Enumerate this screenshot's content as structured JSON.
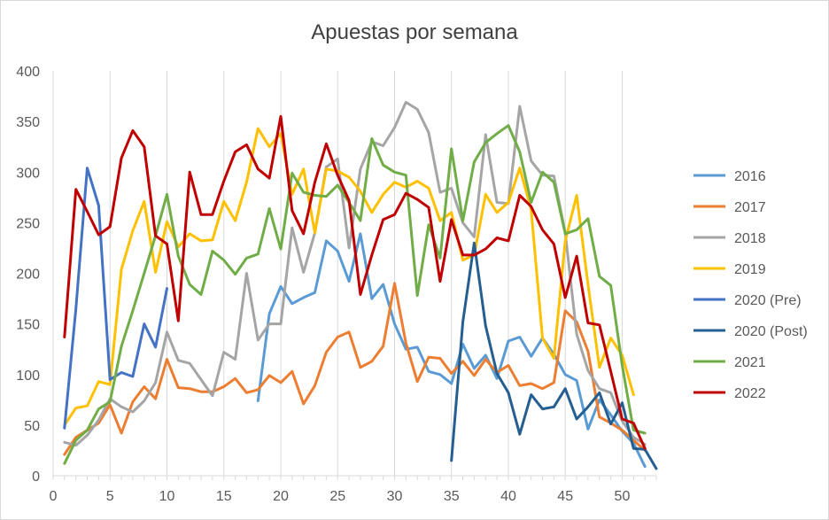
{
  "chart_data": {
    "type": "line",
    "title": "Apuestas por semana",
    "xlim": [
      0,
      53
    ],
    "ylim": [
      0,
      400
    ],
    "x_ticks": [
      0,
      5,
      10,
      15,
      20,
      25,
      30,
      35,
      40,
      45,
      50
    ],
    "y_ticks": [
      0,
      50,
      100,
      150,
      200,
      250,
      300,
      350,
      400
    ],
    "grid": "vertical",
    "legend_position": "right",
    "series": [
      {
        "name": "2016",
        "color": "#5b9bd5",
        "points": [
          [
            18,
            74
          ],
          [
            19,
            160
          ],
          [
            20,
            187
          ],
          [
            21,
            170
          ],
          [
            22,
            176
          ],
          [
            23,
            181
          ],
          [
            24,
            232
          ],
          [
            25,
            222
          ],
          [
            26,
            192
          ],
          [
            27,
            239
          ],
          [
            28,
            175
          ],
          [
            29,
            189
          ],
          [
            30,
            150
          ],
          [
            31,
            125
          ],
          [
            32,
            127
          ],
          [
            33,
            103
          ],
          [
            34,
            100
          ],
          [
            35,
            91
          ],
          [
            36,
            130
          ],
          [
            37,
            106
          ],
          [
            38,
            119
          ],
          [
            39,
            96
          ],
          [
            40,
            133
          ],
          [
            41,
            137
          ],
          [
            42,
            118
          ],
          [
            43,
            136
          ],
          [
            44,
            120
          ],
          [
            45,
            100
          ],
          [
            46,
            94
          ],
          [
            47,
            46
          ],
          [
            48,
            75
          ],
          [
            49,
            60
          ],
          [
            50,
            44
          ],
          [
            51,
            32
          ],
          [
            52,
            9
          ]
        ]
      },
      {
        "name": "2017",
        "color": "#ed7d31",
        "points": [
          [
            1,
            21
          ],
          [
            2,
            38
          ],
          [
            3,
            45
          ],
          [
            4,
            52
          ],
          [
            5,
            70
          ],
          [
            6,
            42
          ],
          [
            7,
            73
          ],
          [
            8,
            88
          ],
          [
            9,
            76
          ],
          [
            10,
            115
          ],
          [
            11,
            87
          ],
          [
            12,
            86
          ],
          [
            13,
            83
          ],
          [
            14,
            83
          ],
          [
            15,
            88
          ],
          [
            16,
            96
          ],
          [
            17,
            82
          ],
          [
            18,
            85
          ],
          [
            19,
            99
          ],
          [
            20,
            92
          ],
          [
            21,
            103
          ],
          [
            22,
            71
          ],
          [
            23,
            89
          ],
          [
            24,
            122
          ],
          [
            25,
            137
          ],
          [
            26,
            142
          ],
          [
            27,
            107
          ],
          [
            28,
            113
          ],
          [
            29,
            128
          ],
          [
            30,
            190
          ],
          [
            31,
            131
          ],
          [
            32,
            93
          ],
          [
            33,
            117
          ],
          [
            34,
            116
          ],
          [
            35,
            101
          ],
          [
            36,
            113
          ],
          [
            37,
            99
          ],
          [
            38,
            115
          ],
          [
            39,
            102
          ],
          [
            40,
            109
          ],
          [
            41,
            89
          ],
          [
            42,
            91
          ],
          [
            43,
            86
          ],
          [
            44,
            92
          ],
          [
            45,
            163
          ],
          [
            46,
            152
          ],
          [
            47,
            123
          ],
          [
            48,
            58
          ],
          [
            49,
            52
          ],
          [
            50,
            45
          ],
          [
            51,
            35
          ],
          [
            52,
            25
          ]
        ]
      },
      {
        "name": "2018",
        "color": "#a5a5a5",
        "points": [
          [
            1,
            33
          ],
          [
            2,
            30
          ],
          [
            3,
            40
          ],
          [
            4,
            55
          ],
          [
            5,
            76
          ],
          [
            6,
            68
          ],
          [
            7,
            63
          ],
          [
            8,
            74
          ],
          [
            9,
            92
          ],
          [
            10,
            142
          ],
          [
            11,
            114
          ],
          [
            12,
            111
          ],
          [
            13,
            95
          ],
          [
            14,
            79
          ],
          [
            15,
            122
          ],
          [
            16,
            115
          ],
          [
            17,
            200
          ],
          [
            18,
            134
          ],
          [
            19,
            150
          ],
          [
            20,
            150
          ],
          [
            21,
            245
          ],
          [
            22,
            201
          ],
          [
            23,
            240
          ],
          [
            24,
            305
          ],
          [
            25,
            313
          ],
          [
            26,
            225
          ],
          [
            27,
            303
          ],
          [
            28,
            330
          ],
          [
            29,
            326
          ],
          [
            30,
            344
          ],
          [
            31,
            369
          ],
          [
            32,
            362
          ],
          [
            33,
            339
          ],
          [
            34,
            280
          ],
          [
            35,
            284
          ],
          [
            36,
            250
          ],
          [
            37,
            236
          ],
          [
            38,
            337
          ],
          [
            39,
            270
          ],
          [
            40,
            269
          ],
          [
            41,
            365
          ],
          [
            42,
            311
          ],
          [
            43,
            297
          ],
          [
            44,
            296
          ],
          [
            45,
            240
          ],
          [
            46,
            140
          ],
          [
            47,
            104
          ],
          [
            48,
            86
          ],
          [
            49,
            82
          ],
          [
            50,
            54
          ],
          [
            51,
            38
          ],
          [
            52,
            31
          ]
        ]
      },
      {
        "name": "2019",
        "color": "#ffc000",
        "points": [
          [
            1,
            50
          ],
          [
            2,
            67
          ],
          [
            3,
            69
          ],
          [
            4,
            93
          ],
          [
            5,
            90
          ],
          [
            6,
            204
          ],
          [
            7,
            242
          ],
          [
            8,
            271
          ],
          [
            9,
            201
          ],
          [
            10,
            251
          ],
          [
            11,
            226
          ],
          [
            12,
            239
          ],
          [
            13,
            232
          ],
          [
            14,
            233
          ],
          [
            15,
            271
          ],
          [
            16,
            252
          ],
          [
            17,
            290
          ],
          [
            18,
            343
          ],
          [
            19,
            325
          ],
          [
            20,
            338
          ],
          [
            21,
            278
          ],
          [
            22,
            303
          ],
          [
            23,
            240
          ],
          [
            24,
            303
          ],
          [
            25,
            301
          ],
          [
            26,
            295
          ],
          [
            27,
            281
          ],
          [
            28,
            260
          ],
          [
            29,
            278
          ],
          [
            30,
            290
          ],
          [
            31,
            285
          ],
          [
            32,
            291
          ],
          [
            33,
            284
          ],
          [
            34,
            252
          ],
          [
            35,
            260
          ],
          [
            36,
            213
          ],
          [
            37,
            218
          ],
          [
            38,
            278
          ],
          [
            39,
            260
          ],
          [
            40,
            270
          ],
          [
            41,
            304
          ],
          [
            42,
            263
          ],
          [
            43,
            136
          ],
          [
            44,
            116
          ],
          [
            45,
            232
          ],
          [
            46,
            277
          ],
          [
            47,
            189
          ],
          [
            48,
            107
          ],
          [
            49,
            136
          ],
          [
            50,
            119
          ],
          [
            51,
            80
          ]
        ]
      },
      {
        "name": "2020 (Pre)",
        "color": "#4472c4",
        "points": [
          [
            1,
            47
          ],
          [
            2,
            165
          ],
          [
            3,
            304
          ],
          [
            4,
            267
          ],
          [
            5,
            95
          ],
          [
            6,
            102
          ],
          [
            7,
            98
          ],
          [
            8,
            150
          ],
          [
            9,
            127
          ],
          [
            10,
            185
          ]
        ]
      },
      {
        "name": "2020 (Post)",
        "color": "#255e91",
        "points": [
          [
            35,
            15
          ],
          [
            36,
            152
          ],
          [
            37,
            230
          ],
          [
            38,
            148
          ],
          [
            39,
            101
          ],
          [
            40,
            82
          ],
          [
            41,
            41
          ],
          [
            42,
            80
          ],
          [
            43,
            66
          ],
          [
            44,
            68
          ],
          [
            45,
            86
          ],
          [
            46,
            56
          ],
          [
            47,
            68
          ],
          [
            48,
            82
          ],
          [
            49,
            51
          ],
          [
            50,
            72
          ],
          [
            51,
            27
          ],
          [
            52,
            26
          ],
          [
            53,
            7
          ]
        ]
      },
      {
        "name": "2021",
        "color": "#70ad47",
        "points": [
          [
            1,
            12
          ],
          [
            2,
            35
          ],
          [
            3,
            45
          ],
          [
            4,
            66
          ],
          [
            5,
            73
          ],
          [
            6,
            128
          ],
          [
            7,
            163
          ],
          [
            8,
            200
          ],
          [
            9,
            237
          ],
          [
            10,
            278
          ],
          [
            11,
            217
          ],
          [
            12,
            189
          ],
          [
            13,
            179
          ],
          [
            14,
            222
          ],
          [
            15,
            213
          ],
          [
            16,
            199
          ],
          [
            17,
            215
          ],
          [
            18,
            219
          ],
          [
            19,
            264
          ],
          [
            20,
            224
          ],
          [
            21,
            299
          ],
          [
            22,
            280
          ],
          [
            23,
            277
          ],
          [
            24,
            276
          ],
          [
            25,
            287
          ],
          [
            26,
            270
          ],
          [
            27,
            252
          ],
          [
            28,
            333
          ],
          [
            29,
            307
          ],
          [
            30,
            300
          ],
          [
            31,
            297
          ],
          [
            32,
            178
          ],
          [
            33,
            248
          ],
          [
            34,
            215
          ],
          [
            35,
            323
          ],
          [
            36,
            252
          ],
          [
            37,
            310
          ],
          [
            38,
            329
          ],
          [
            39,
            338
          ],
          [
            40,
            346
          ],
          [
            41,
            320
          ],
          [
            42,
            270
          ],
          [
            43,
            300
          ],
          [
            44,
            290
          ],
          [
            45,
            239
          ],
          [
            46,
            243
          ],
          [
            47,
            254
          ],
          [
            48,
            197
          ],
          [
            49,
            188
          ],
          [
            50,
            109
          ],
          [
            51,
            45
          ],
          [
            52,
            42
          ]
        ]
      },
      {
        "name": "2022",
        "color": "#c00000",
        "points": [
          [
            1,
            137
          ],
          [
            2,
            283
          ],
          [
            3,
            261
          ],
          [
            4,
            238
          ],
          [
            5,
            246
          ],
          [
            6,
            314
          ],
          [
            7,
            341
          ],
          [
            8,
            325
          ],
          [
            9,
            237
          ],
          [
            10,
            229
          ],
          [
            11,
            153
          ],
          [
            12,
            300
          ],
          [
            13,
            258
          ],
          [
            14,
            258
          ],
          [
            15,
            291
          ],
          [
            16,
            320
          ],
          [
            17,
            327
          ],
          [
            18,
            303
          ],
          [
            19,
            294
          ],
          [
            20,
            355
          ],
          [
            21,
            262
          ],
          [
            22,
            239
          ],
          [
            23,
            290
          ],
          [
            24,
            328
          ],
          [
            25,
            297
          ],
          [
            26,
            272
          ],
          [
            27,
            179
          ],
          [
            28,
            218
          ],
          [
            29,
            253
          ],
          [
            30,
            258
          ],
          [
            31,
            279
          ],
          [
            32,
            273
          ],
          [
            33,
            265
          ],
          [
            34,
            192
          ],
          [
            35,
            253
          ],
          [
            36,
            218
          ],
          [
            37,
            218
          ],
          [
            38,
            224
          ],
          [
            39,
            235
          ],
          [
            40,
            232
          ],
          [
            41,
            277
          ],
          [
            42,
            266
          ],
          [
            43,
            243
          ],
          [
            44,
            229
          ],
          [
            45,
            176
          ],
          [
            46,
            217
          ],
          [
            47,
            151
          ],
          [
            48,
            149
          ],
          [
            49,
            103
          ],
          [
            50,
            56
          ],
          [
            51,
            52
          ],
          [
            52,
            27
          ]
        ]
      }
    ]
  }
}
